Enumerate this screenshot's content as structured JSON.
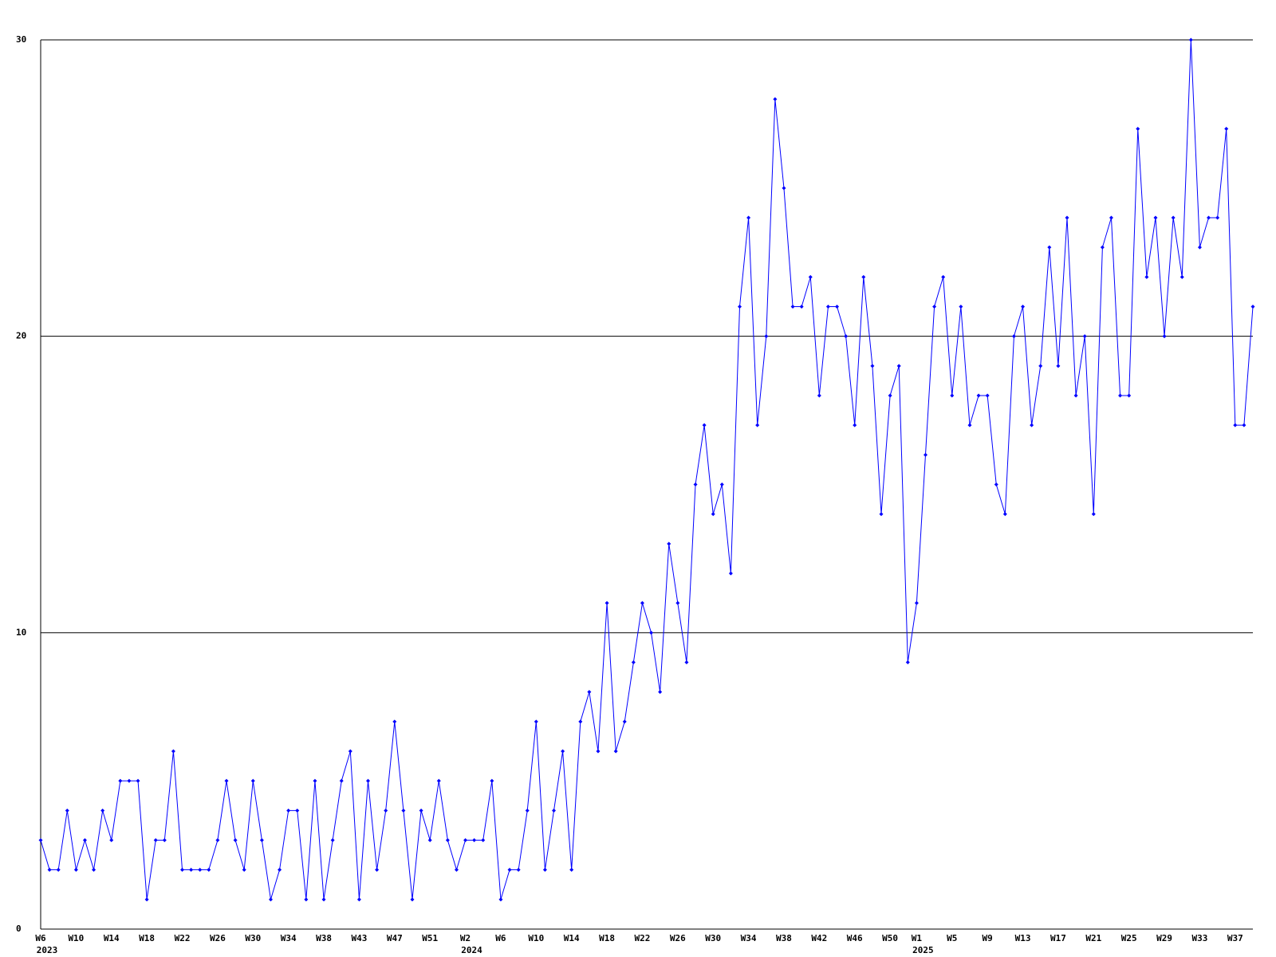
{
  "chart_data": {
    "type": "line",
    "color": "#0000ff",
    "grid": true,
    "ylim": [
      0,
      30
    ],
    "yticks": [
      0,
      10,
      20,
      30
    ],
    "categories": [
      "W6",
      null,
      null,
      null,
      "W10",
      null,
      null,
      null,
      "W14",
      null,
      null,
      null,
      "W18",
      null,
      null,
      null,
      "W22",
      null,
      null,
      null,
      "W26",
      null,
      null,
      null,
      "W30",
      null,
      null,
      null,
      "W34",
      null,
      null,
      null,
      "W38",
      null,
      null,
      null,
      "W43",
      null,
      null,
      null,
      "W47",
      null,
      null,
      null,
      "W51",
      null,
      null,
      null,
      "W2",
      null,
      null,
      null,
      "W6",
      null,
      null,
      null,
      "W10",
      null,
      null,
      null,
      "W14",
      null,
      null,
      null,
      "W18",
      null,
      null,
      null,
      "W22",
      null,
      null,
      null,
      "W26",
      null,
      null,
      null,
      "W30",
      null,
      null,
      null,
      "W34",
      null,
      null,
      null,
      "W38",
      null,
      null,
      null,
      "W42",
      null,
      null,
      null,
      "W46",
      null,
      null,
      null,
      "W50",
      null,
      null,
      "W1",
      null,
      null,
      null,
      "W5",
      null,
      null,
      null,
      "W9",
      null,
      null,
      null,
      "W13",
      null,
      null,
      null,
      "W17",
      null,
      null,
      null,
      "W21",
      null,
      null,
      null,
      "W25",
      null,
      null,
      null,
      "W29",
      null,
      null,
      null,
      "W33",
      null,
      null,
      null,
      "W37",
      null,
      null
    ],
    "years": [
      "2023",
      null,
      null,
      null,
      null,
      null,
      null,
      null,
      null,
      null,
      null,
      null,
      null,
      null,
      null,
      null,
      null,
      null,
      null,
      null,
      null,
      null,
      null,
      null,
      null,
      null,
      null,
      null,
      null,
      null,
      null,
      null,
      null,
      null,
      null,
      null,
      null,
      null,
      null,
      null,
      null,
      null,
      null,
      null,
      null,
      null,
      null,
      null,
      "2024",
      null,
      null,
      null,
      null,
      null,
      null,
      null,
      null,
      null,
      null,
      null,
      null,
      null,
      null,
      null,
      null,
      null,
      null,
      null,
      null,
      null,
      null,
      null,
      null,
      null,
      null,
      null,
      null,
      null,
      null,
      null,
      null,
      null,
      null,
      null,
      null,
      null,
      null,
      null,
      null,
      null,
      null,
      null,
      null,
      null,
      null,
      null,
      null,
      null,
      null,
      "2025",
      null,
      null,
      null,
      null,
      null,
      null,
      null,
      null,
      null,
      null,
      null,
      null,
      null,
      null,
      null,
      null,
      null,
      null,
      null,
      null,
      null,
      null,
      null,
      null,
      null,
      null,
      null,
      null,
      null,
      null,
      null,
      null,
      null,
      null,
      null,
      null,
      null,
      null
    ],
    "values": [
      3,
      2,
      2,
      4,
      2,
      3,
      2,
      4,
      3,
      5,
      5,
      5,
      1,
      3,
      3,
      6,
      2,
      2,
      2,
      2,
      3,
      5,
      3,
      2,
      5,
      3,
      1,
      2,
      4,
      4,
      1,
      5,
      1,
      3,
      5,
      6,
      1,
      5,
      2,
      4,
      7,
      4,
      1,
      4,
      3,
      5,
      3,
      2,
      3,
      3,
      3,
      5,
      1,
      2,
      2,
      4,
      7,
      2,
      4,
      6,
      2,
      7,
      8,
      6,
      11,
      6,
      7,
      9,
      11,
      10,
      8,
      13,
      11,
      9,
      15,
      17,
      14,
      15,
      12,
      21,
      24,
      17,
      20,
      28,
      25,
      21,
      21,
      22,
      18,
      21,
      21,
      20,
      17,
      22,
      19,
      14,
      18,
      19,
      9,
      11,
      16,
      21,
      22,
      18,
      21,
      17,
      18,
      18,
      15,
      14,
      20,
      21,
      17,
      19,
      23,
      19,
      24,
      18,
      20,
      14,
      23,
      24,
      18,
      18,
      27,
      22,
      24,
      20,
      24,
      22,
      30,
      23,
      24,
      24,
      27,
      17,
      17,
      21
    ]
  }
}
